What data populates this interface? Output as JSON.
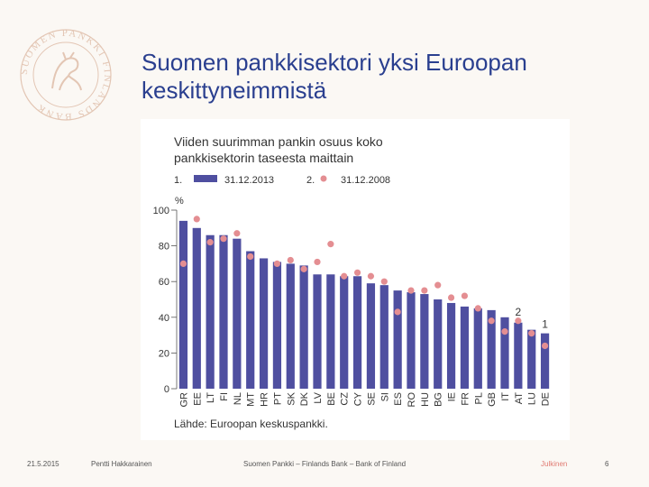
{
  "slide": {
    "title_line1": "Suomen pankkisektori yksi Euroopan",
    "title_line2": "keskittyneimmistä",
    "logo_text": "SUOMEN PANKKI FINLANDS BANK"
  },
  "footer": {
    "date": "21.5.2015",
    "author": "Pentti Hakkarainen",
    "bank": "Suomen Pankki – Finlands Bank – Bank of Finland",
    "classification": "Julkinen",
    "page": "6"
  },
  "colors": {
    "bar": "#4f4fa0",
    "dot": "#e48e92",
    "title": "#2a3f8f",
    "text": "#333333"
  },
  "chart_data": {
    "type": "bar",
    "title_line1": "Viiden suurimman pankin osuus koko",
    "title_line2": "pankkisektorin taseesta maittain",
    "unit_label": "%",
    "source": "Lähde: Euroopan keskuspankki.",
    "ylim": [
      0,
      100
    ],
    "yticks": [
      0,
      20,
      40,
      60,
      80,
      100
    ],
    "legend": [
      {
        "number": "1.",
        "label": "31.12.2013",
        "marker": "bar"
      },
      {
        "number": "2.",
        "label": "31.12.2008",
        "marker": "dot"
      }
    ],
    "annotations": [
      {
        "text": "2",
        "category": "AT"
      },
      {
        "text": "1",
        "category": "DE"
      }
    ],
    "categories": [
      "GR",
      "EE",
      "LT",
      "FI",
      "NL",
      "MT",
      "HR",
      "PT",
      "SK",
      "DK",
      "LV",
      "BE",
      "CZ",
      "CY",
      "SE",
      "SI",
      "ES",
      "RO",
      "HU",
      "BG",
      "IE",
      "FR",
      "PL",
      "GB",
      "IT",
      "AT",
      "LU",
      "DE"
    ],
    "series": [
      {
        "name": "31.12.2013",
        "kind": "bar",
        "values": [
          94,
          90,
          86,
          86,
          84,
          77,
          73,
          71,
          70,
          69,
          64,
          64,
          63,
          63,
          59,
          58,
          55,
          54,
          53,
          50,
          48,
          46,
          45,
          44,
          40,
          37,
          33,
          31
        ]
      },
      {
        "name": "31.12.2008",
        "kind": "dot",
        "values": [
          70,
          95,
          82,
          84,
          87,
          74,
          null,
          70,
          72,
          67,
          71,
          81,
          63,
          65,
          63,
          60,
          43,
          55,
          55,
          58,
          51,
          52,
          45,
          38,
          32,
          38,
          31,
          24
        ]
      }
    ]
  }
}
